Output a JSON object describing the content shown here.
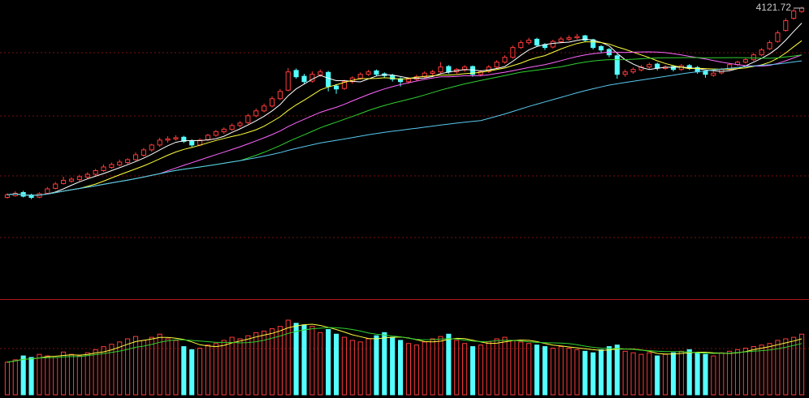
{
  "chart_data": {
    "type": "candlestick",
    "ylim": [
      2941,
      4155
    ],
    "volume_ylim": [
      0,
      120
    ],
    "up_color": "#ff3b3b",
    "down_color": "#54ffff",
    "ma": [
      {
        "period": 5,
        "color": "#ffffff"
      },
      {
        "period": 10,
        "color": "#ffff3c"
      },
      {
        "period": 20,
        "color": "#ff66ff"
      },
      {
        "period": 30,
        "color": "#30d030"
      },
      {
        "period": 60,
        "color": "#5ac8f0"
      }
    ],
    "volume_ma": [
      {
        "period": 5,
        "color": "#ffff3c"
      },
      {
        "period": 10,
        "color": "#30d030"
      }
    ],
    "candles": [
      [
        3345,
        3362,
        3340,
        3356
      ],
      [
        3352,
        3370,
        3348,
        3362
      ],
      [
        3365,
        3372,
        3345,
        3350
      ],
      [
        3355,
        3360,
        3338,
        3345
      ],
      [
        3346,
        3366,
        3342,
        3360
      ],
      [
        3362,
        3388,
        3358,
        3380
      ],
      [
        3382,
        3408,
        3378,
        3400
      ],
      [
        3402,
        3430,
        3398,
        3415
      ],
      [
        3412,
        3428,
        3405,
        3420
      ],
      [
        3418,
        3438,
        3412,
        3430
      ],
      [
        3428,
        3448,
        3420,
        3440
      ],
      [
        3440,
        3462,
        3434,
        3455
      ],
      [
        3455,
        3480,
        3450,
        3470
      ],
      [
        3468,
        3488,
        3462,
        3480
      ],
      [
        3478,
        3500,
        3472,
        3490
      ],
      [
        3488,
        3506,
        3482,
        3500
      ],
      [
        3500,
        3530,
        3495,
        3520
      ],
      [
        3518,
        3548,
        3512,
        3540
      ],
      [
        3540,
        3565,
        3532,
        3560
      ],
      [
        3560,
        3590,
        3552,
        3580
      ],
      [
        3580,
        3596,
        3570,
        3585
      ],
      [
        3585,
        3600,
        3578,
        3590
      ],
      [
        3592,
        3598,
        3568,
        3575
      ],
      [
        3578,
        3584,
        3552,
        3560
      ],
      [
        3560,
        3588,
        3555,
        3580
      ],
      [
        3582,
        3606,
        3576,
        3600
      ],
      [
        3600,
        3622,
        3594,
        3615
      ],
      [
        3614,
        3632,
        3606,
        3625
      ],
      [
        3624,
        3648,
        3618,
        3640
      ],
      [
        3640,
        3658,
        3632,
        3650
      ],
      [
        3652,
        3688,
        3646,
        3680
      ],
      [
        3680,
        3710,
        3674,
        3700
      ],
      [
        3700,
        3730,
        3694,
        3720
      ],
      [
        3720,
        3760,
        3714,
        3750
      ],
      [
        3750,
        3790,
        3744,
        3780
      ],
      [
        3785,
        3876,
        3780,
        3860
      ],
      [
        3866,
        3874,
        3832,
        3840
      ],
      [
        3842,
        3852,
        3812,
        3820
      ],
      [
        3822,
        3862,
        3816,
        3850
      ],
      [
        3848,
        3870,
        3840,
        3860
      ],
      [
        3858,
        3864,
        3780,
        3800
      ],
      [
        3802,
        3810,
        3770,
        3790
      ],
      [
        3792,
        3828,
        3786,
        3820
      ],
      [
        3820,
        3842,
        3812,
        3835
      ],
      [
        3834,
        3858,
        3828,
        3850
      ],
      [
        3850,
        3868,
        3844,
        3860
      ],
      [
        3864,
        3870,
        3842,
        3850
      ],
      [
        3852,
        3858,
        3836,
        3845
      ],
      [
        3846,
        3852,
        3820,
        3830
      ],
      [
        3832,
        3838,
        3800,
        3820
      ],
      [
        3820,
        3838,
        3812,
        3830
      ],
      [
        3830,
        3848,
        3824,
        3840
      ],
      [
        3840,
        3862,
        3834,
        3855
      ],
      [
        3854,
        3868,
        3846,
        3860
      ],
      [
        3860,
        3900,
        3854,
        3880
      ],
      [
        3882,
        3888,
        3852,
        3860
      ],
      [
        3860,
        3876,
        3852,
        3870
      ],
      [
        3868,
        3888,
        3860,
        3880
      ],
      [
        3882,
        3886,
        3840,
        3850
      ],
      [
        3850,
        3868,
        3842,
        3860
      ],
      [
        3862,
        3888,
        3856,
        3880
      ],
      [
        3880,
        3908,
        3874,
        3900
      ],
      [
        3900,
        3928,
        3894,
        3920
      ],
      [
        3920,
        3968,
        3914,
        3960
      ],
      [
        3960,
        3990,
        3954,
        3980
      ],
      [
        3980,
        4000,
        3972,
        3990
      ],
      [
        3994,
        4000,
        3962,
        3970
      ],
      [
        3972,
        3978,
        3950,
        3960
      ],
      [
        3962,
        3992,
        3956,
        3985
      ],
      [
        3984,
        4004,
        3978,
        3995
      ],
      [
        3994,
        4010,
        3988,
        4000
      ],
      [
        4000,
        4016,
        3994,
        4005
      ],
      [
        4008,
        4012,
        3982,
        3990
      ],
      [
        3992,
        3996,
        3952,
        3960
      ],
      [
        3964,
        3970,
        3940,
        3950
      ],
      [
        3952,
        3958,
        3920,
        3930
      ],
      [
        3926,
        3932,
        3832,
        3850
      ],
      [
        3850,
        3870,
        3840,
        3860
      ],
      [
        3860,
        3878,
        3852,
        3870
      ],
      [
        3868,
        3888,
        3862,
        3880
      ],
      [
        3880,
        3898,
        3872,
        3890
      ],
      [
        3892,
        3898,
        3866,
        3875
      ],
      [
        3874,
        3888,
        3868,
        3880
      ],
      [
        3882,
        3888,
        3862,
        3870
      ],
      [
        3870,
        3892,
        3864,
        3885
      ],
      [
        3886,
        3892,
        3868,
        3875
      ],
      [
        3878,
        3884,
        3852,
        3860
      ],
      [
        3862,
        3866,
        3836,
        3850
      ],
      [
        3846,
        3862,
        3840,
        3855
      ],
      [
        3856,
        3876,
        3850,
        3870
      ],
      [
        3870,
        3896,
        3864,
        3890
      ],
      [
        3890,
        3906,
        3884,
        3900
      ],
      [
        3900,
        3916,
        3894,
        3910
      ],
      [
        3910,
        3938,
        3904,
        3930
      ],
      [
        3930,
        3958,
        3924,
        3950
      ],
      [
        3955,
        3990,
        3950,
        3980
      ],
      [
        3985,
        4030,
        3980,
        4020
      ],
      [
        4030,
        4080,
        4025,
        4070
      ],
      [
        4080,
        4118,
        4074,
        4110
      ],
      [
        4108,
        4128,
        4102,
        4121.72
      ]
    ],
    "volumes": [
      42,
      45,
      50,
      48,
      52,
      50,
      48,
      55,
      52,
      50,
      54,
      58,
      62,
      65,
      68,
      72,
      75,
      70,
      74,
      78,
      72,
      70,
      62,
      58,
      60,
      64,
      66,
      70,
      74,
      72,
      76,
      80,
      82,
      85,
      88,
      96,
      92,
      90,
      88,
      80,
      84,
      78,
      74,
      70,
      68,
      72,
      76,
      80,
      74,
      70,
      66,
      64,
      68,
      72,
      75,
      78,
      70,
      66,
      62,
      64,
      68,
      72,
      74,
      70,
      68,
      66,
      64,
      62,
      60,
      62,
      60,
      58,
      56,
      54,
      58,
      62,
      64,
      56,
      54,
      52,
      54,
      50,
      52,
      54,
      56,
      58,
      54,
      52,
      50,
      54,
      56,
      58,
      60,
      62,
      64,
      66,
      70,
      72,
      74,
      78
    ]
  }
}
